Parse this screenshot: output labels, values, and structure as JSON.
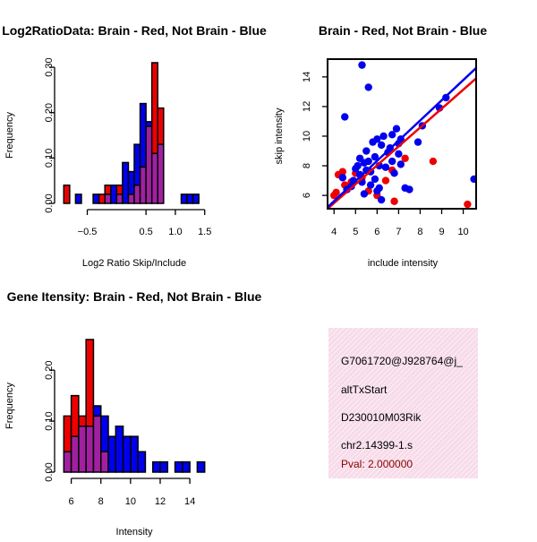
{
  "colors": {
    "brain": "#ee0000",
    "not_brain": "#0000ee",
    "overlap": "#a020a0",
    "pval": "#8b0000",
    "panel_bg": "#f7dbe9"
  },
  "chart_data": [
    {
      "type": "bar",
      "title": "Log2RatioData: Brain - Red, Not Brain - Blue",
      "xlabel": "Log2 Ratio Skip/Include",
      "ylabel": "Frequency",
      "xlim": [
        -0.95,
        1.55
      ],
      "ylim": [
        0,
        0.31
      ],
      "xticks": [
        -0.5,
        0.5,
        1.0,
        1.5
      ],
      "xtick_labels": [
        "−0.5",
        "0.5",
        "1.0",
        "1.5"
      ],
      "yticks": [
        0.0,
        0.1,
        0.2,
        0.3
      ],
      "ytick_labels": [
        "0.00",
        "0.10",
        "0.20",
        "0.30"
      ],
      "bin_edges": [
        -0.9,
        -0.8,
        -0.7,
        -0.6,
        -0.5,
        -0.4,
        -0.3,
        -0.2,
        -0.1,
        0.0,
        0.1,
        0.2,
        0.3,
        0.4,
        0.5,
        0.6,
        0.7,
        0.8,
        0.9,
        1.0,
        1.1,
        1.2,
        1.3,
        1.4,
        1.5
      ],
      "series": [
        {
          "name": "Brain",
          "color": "red",
          "values": [
            0.04,
            0,
            0,
            0,
            0,
            0,
            0.02,
            0.04,
            0,
            0.04,
            0,
            0.02,
            0.04,
            0.08,
            0.17,
            0.31,
            0.21,
            0,
            0,
            0,
            0,
            0,
            0,
            0
          ]
        },
        {
          "name": "Not Brain",
          "color": "blue",
          "values": [
            0,
            0,
            0.02,
            0,
            0,
            0.02,
            0,
            0.02,
            0.04,
            0.02,
            0.09,
            0.07,
            0.13,
            0.22,
            0.18,
            0.11,
            0.13,
            0,
            0,
            0,
            0.02,
            0.02,
            0.02,
            0
          ]
        }
      ]
    },
    {
      "type": "scatter",
      "title": "Brain - Red, Not Brain - Blue",
      "xlabel": "include intensity",
      "ylabel": "skip intensity",
      "xlim": [
        3.7,
        10.6
      ],
      "ylim": [
        5.1,
        15.2
      ],
      "xticks": [
        4,
        5,
        6,
        7,
        8,
        9,
        10
      ],
      "xtick_labels": [
        "4",
        "5",
        "6",
        "7",
        "8",
        "9",
        "10"
      ],
      "yticks": [
        6,
        8,
        10,
        12,
        14
      ],
      "ytick_labels": [
        "6",
        "8",
        "10",
        "12",
        "14"
      ],
      "series": [
        {
          "name": "Brain",
          "color": "red",
          "points": [
            [
              4.0,
              6.0
            ],
            [
              4.1,
              6.2
            ],
            [
              4.2,
              7.4
            ],
            [
              4.4,
              7.6
            ],
            [
              4.5,
              6.7
            ],
            [
              4.6,
              6.4
            ],
            [
              4.8,
              6.9
            ],
            [
              5.0,
              7.5
            ],
            [
              5.3,
              7.2
            ],
            [
              5.6,
              6.3
            ],
            [
              6.0,
              6.0
            ],
            [
              6.4,
              7.0
            ],
            [
              6.7,
              7.7
            ],
            [
              6.8,
              5.6
            ],
            [
              7.3,
              8.5
            ],
            [
              8.6,
              8.3
            ],
            [
              10.2,
              5.4
            ]
          ]
        },
        {
          "name": "Not Brain",
          "color": "blue",
          "points": [
            [
              4.4,
              7.2
            ],
            [
              4.5,
              11.3
            ],
            [
              4.6,
              6.4
            ],
            [
              4.8,
              6.6
            ],
            [
              4.9,
              7.0
            ],
            [
              5.0,
              7.8
            ],
            [
              5.1,
              8.0
            ],
            [
              5.2,
              8.5
            ],
            [
              5.2,
              7.4
            ],
            [
              5.3,
              6.9
            ],
            [
              5.3,
              14.8
            ],
            [
              5.4,
              6.1
            ],
            [
              5.4,
              8.2
            ],
            [
              5.5,
              9.0
            ],
            [
              5.5,
              7.7
            ],
            [
              5.6,
              13.3
            ],
            [
              5.6,
              8.3
            ],
            [
              5.7,
              7.6
            ],
            [
              5.7,
              6.7
            ],
            [
              5.8,
              9.6
            ],
            [
              5.9,
              8.6
            ],
            [
              5.9,
              7.1
            ],
            [
              6.0,
              6.3
            ],
            [
              6.0,
              9.8
            ],
            [
              6.1,
              8.0
            ],
            [
              6.1,
              6.5
            ],
            [
              6.2,
              5.7
            ],
            [
              6.2,
              9.4
            ],
            [
              6.3,
              10.0
            ],
            [
              6.4,
              7.9
            ],
            [
              6.5,
              8.9
            ],
            [
              6.6,
              9.2
            ],
            [
              6.7,
              8.3
            ],
            [
              6.7,
              10.1
            ],
            [
              6.8,
              7.5
            ],
            [
              6.9,
              10.5
            ],
            [
              7.0,
              8.8
            ],
            [
              7.0,
              9.5
            ],
            [
              7.1,
              8.1
            ],
            [
              7.1,
              9.8
            ],
            [
              7.3,
              6.5
            ],
            [
              7.5,
              6.4
            ],
            [
              7.9,
              9.6
            ],
            [
              8.1,
              10.7
            ],
            [
              8.9,
              11.9
            ],
            [
              9.2,
              12.6
            ],
            [
              10.5,
              7.1
            ]
          ]
        }
      ],
      "fit_lines": [
        {
          "name": "Brain fit",
          "color": "red",
          "from": [
            3.7,
            5.1
          ],
          "to": [
            10.6,
            13.9
          ]
        },
        {
          "name": "Not Brain fit",
          "color": "blue",
          "from": [
            3.7,
            5.2
          ],
          "to": [
            10.6,
            14.6
          ]
        }
      ]
    },
    {
      "type": "bar",
      "title": "Gene Itensity: Brain - Red, Not Brain - Blue",
      "xlabel": "Intensity",
      "ylabel": "Frequency",
      "xlim": [
        5.3,
        15.2
      ],
      "ylim": [
        0,
        0.26
      ],
      "xticks": [
        6,
        8,
        10,
        12,
        14
      ],
      "xtick_labels": [
        "6",
        "8",
        "10",
        "12",
        "14"
      ],
      "yticks": [
        0.0,
        0.1,
        0.2
      ],
      "ytick_labels": [
        "0.00",
        "0.10",
        "0.20"
      ],
      "bin_edges": [
        5.5,
        6.0,
        6.5,
        7.0,
        7.5,
        8.0,
        8.5,
        9.0,
        9.5,
        10.0,
        10.5,
        11.0,
        11.5,
        12.0,
        12.5,
        13.0,
        13.5,
        14.0,
        14.5,
        15.0
      ],
      "series": [
        {
          "name": "Brain",
          "color": "red",
          "values": [
            0.11,
            0.15,
            0.11,
            0.26,
            0.11,
            0.04,
            0,
            0,
            0,
            0,
            0,
            0,
            0,
            0,
            0,
            0,
            0,
            0,
            0
          ]
        },
        {
          "name": "Not Brain",
          "color": "blue",
          "values": [
            0.04,
            0.07,
            0.09,
            0.09,
            0.13,
            0.11,
            0.07,
            0.09,
            0.07,
            0.07,
            0.04,
            0,
            0.02,
            0.02,
            0,
            0.02,
            0.02,
            0,
            0.02
          ]
        }
      ]
    }
  ],
  "info_panel": {
    "id": "G7061720@J928764@j_",
    "event_type": "altTxStart",
    "gene": "D230010M03Rik",
    "location": "chr2.14399-1.s",
    "pval": "Pval: 2.000000"
  }
}
